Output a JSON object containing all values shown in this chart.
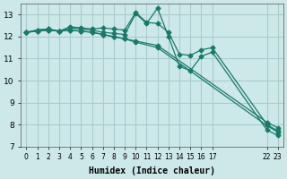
{
  "xlabel": "Humidex (Indice chaleur)",
  "bg_color": "#cce8e8",
  "grid_color": "#aacccc",
  "line_color": "#1a7a6a",
  "ylim": [
    7,
    13.5
  ],
  "xlim": [
    -0.5,
    23.5
  ],
  "yticks": [
    7,
    8,
    9,
    10,
    11,
    12,
    13
  ],
  "xticks": [
    0,
    1,
    2,
    3,
    4,
    5,
    6,
    7,
    8,
    9,
    10,
    11,
    12,
    13,
    14,
    15,
    16,
    17,
    22,
    23
  ],
  "series": [
    {
      "x": [
        0,
        1,
        2,
        3,
        4,
        5,
        6,
        7,
        8,
        9,
        10,
        11,
        12,
        13,
        14,
        15,
        16,
        17,
        22,
        23
      ],
      "y": [
        12.2,
        12.3,
        12.35,
        12.25,
        12.4,
        12.35,
        12.3,
        12.2,
        12.15,
        12.1,
        13.05,
        12.6,
        13.3,
        12.0,
        10.65,
        10.45,
        11.1,
        11.3,
        7.75,
        7.5
      ]
    },
    {
      "x": [
        0,
        1,
        2,
        3,
        4,
        5,
        6,
        7,
        8,
        9,
        10,
        11,
        12,
        13,
        14,
        15,
        16,
        17,
        22,
        23
      ],
      "y": [
        12.2,
        12.3,
        12.35,
        12.25,
        12.45,
        12.4,
        12.35,
        12.4,
        12.35,
        12.3,
        13.1,
        12.65,
        12.6,
        12.2,
        11.2,
        11.15,
        11.4,
        11.5,
        8.0,
        7.7
      ]
    },
    {
      "x": [
        0,
        1,
        2,
        3,
        4,
        5,
        6,
        7,
        8,
        9,
        10,
        12,
        22,
        23
      ],
      "y": [
        12.2,
        12.25,
        12.3,
        12.25,
        12.3,
        12.25,
        12.2,
        12.1,
        12.0,
        11.9,
        11.8,
        11.6,
        8.1,
        7.85
      ]
    },
    {
      "x": [
        0,
        1,
        2,
        3,
        4,
        5,
        6,
        7,
        8,
        9,
        10,
        12,
        22,
        23
      ],
      "y": [
        12.2,
        12.25,
        12.3,
        12.25,
        12.3,
        12.25,
        12.2,
        12.1,
        12.0,
        11.9,
        11.75,
        11.5,
        7.95,
        7.65
      ]
    }
  ]
}
